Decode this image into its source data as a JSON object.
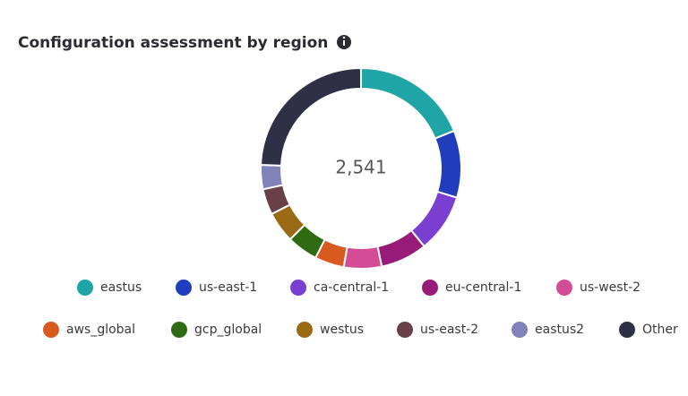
{
  "chart_data": {
    "type": "donut",
    "title": "Configuration assessment by region",
    "center_label": "2,541",
    "categories": [
      "eastus",
      "us-east-1",
      "ca-central-1",
      "eu-central-1",
      "us-west-2",
      "aws_global",
      "gcp_global",
      "westus",
      "us-east-2",
      "eastus2",
      "Other"
    ],
    "values": [
      480,
      275,
      240,
      191,
      155,
      120,
      127,
      127,
      106,
      99,
      621
    ],
    "colors": [
      "#1fa5a6",
      "#1f3dbd",
      "#7a3fd0",
      "#991b79",
      "#d44c96",
      "#d95a1f",
      "#2e6b12",
      "#9a6a14",
      "#6a4048",
      "#7f83b8",
      "#2f2f45"
    ]
  }
}
